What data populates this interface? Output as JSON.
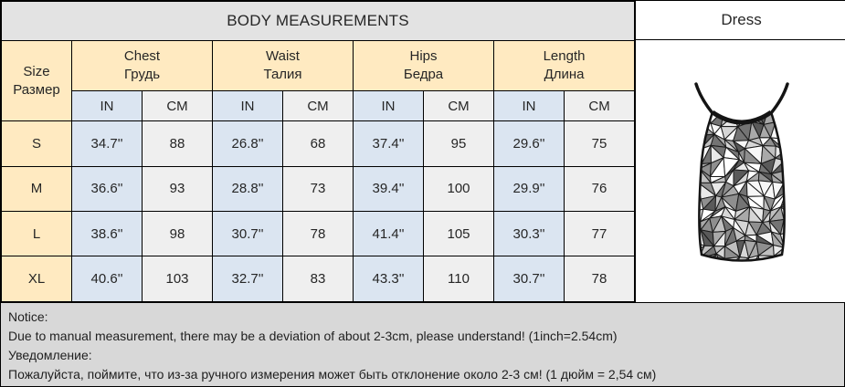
{
  "title": "BODY MEASUREMENTS",
  "dress_panel": {
    "title": "Dress",
    "image_alt": "silver-mosaic-cami-dress"
  },
  "table": {
    "size_header": {
      "en": "Size",
      "ru": "Размер"
    },
    "groups": [
      {
        "en": "Chest",
        "ru": "Грудь"
      },
      {
        "en": "Waist",
        "ru": "Талия"
      },
      {
        "en": "Hips",
        "ru": "Бедра"
      },
      {
        "en": "Length",
        "ru": "Длина"
      }
    ],
    "unit_in": "IN",
    "unit_cm": "CM",
    "rows": [
      {
        "size": "S",
        "chest_in": "34.7''",
        "chest_cm": "88",
        "waist_in": "26.8''",
        "waist_cm": "68",
        "hips_in": "37.4''",
        "hips_cm": "95",
        "length_in": "29.6''",
        "length_cm": "75"
      },
      {
        "size": "M",
        "chest_in": "36.6''",
        "chest_cm": "93",
        "waist_in": "28.8''",
        "waist_cm": "73",
        "hips_in": "39.4''",
        "hips_cm": "100",
        "length_in": "29.9''",
        "length_cm": "76"
      },
      {
        "size": "L",
        "chest_in": "38.6''",
        "chest_cm": "98",
        "waist_in": "30.7''",
        "waist_cm": "78",
        "hips_in": "41.4''",
        "hips_cm": "105",
        "length_in": "30.3''",
        "length_cm": "77"
      },
      {
        "size": "XL",
        "chest_in": "40.6''",
        "chest_cm": "103",
        "waist_in": "32.7''",
        "waist_cm": "83",
        "hips_in": "43.3''",
        "hips_cm": "110",
        "length_in": "30.7''",
        "length_cm": "78"
      }
    ]
  },
  "notice": {
    "label_en": "Notice:",
    "text_en": "Due to manual measurement, there may be a deviation of about 2-3cm, please understand! (1inch=2.54cm)",
    "label_ru": "Уведомление:",
    "text_ru": "Пожалуйста, поймите, что из-за ручного измерения может быть отклонение около 2-3 см! (1 дюйм = 2,54 см)"
  },
  "colors": {
    "title_bg": "#e3e3e3",
    "group_bg": "#ffeac1",
    "size_bg": "#c6e0b4",
    "in_bg": "#dbe5f1",
    "cm_bg": "#efefef",
    "notice_bg": "#d8d8d8",
    "border": "#000000",
    "mosaic_palette": [
      "#f7f7f7",
      "#e9e9e9",
      "#d6d6d6",
      "#c0c0c0",
      "#a9a9a9",
      "#8f8f8f",
      "#747474",
      "#5a5a5a",
      "#ffffff"
    ]
  }
}
